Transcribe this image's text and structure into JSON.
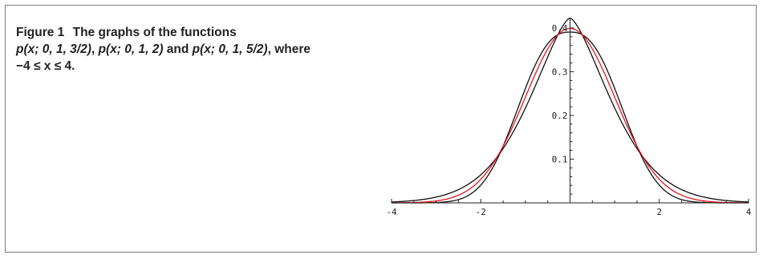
{
  "figure": {
    "label": "Figure 1",
    "text": {
      "part1": "The graphs of the functions",
      "f1": "p(x; 0, 1, 3/2)",
      "sep1": ", ",
      "f2": "p(x; 0, 1, 2)",
      "sep2": " and ",
      "f3": "p(x; 0, 1, 5/2)",
      "part2": ", where",
      "range": "−4 ≤ x ≤ 4."
    }
  },
  "colors": {
    "axis": "#222222",
    "black_series": "#111111",
    "red_series": "#e8141c",
    "frame": "#7f7f7f"
  },
  "chart_data": {
    "type": "line",
    "xlim": [
      -4,
      4
    ],
    "ylim": [
      0,
      0.42
    ],
    "x_ticks": [
      -4,
      -2,
      2,
      4
    ],
    "y_ticks": [
      0.1,
      0.2,
      0.3,
      0.4
    ],
    "x_tick_labels": [
      "-4",
      "-2",
      "2",
      "4"
    ],
    "y_tick_labels": [
      "0.1",
      "0.2",
      "0.3",
      "0.4"
    ],
    "grid": false,
    "series": [
      {
        "p": 1.5,
        "color": "#111111",
        "x": [
          -4,
          -3.5,
          -3,
          -2.5,
          -2,
          -1.5,
          -1,
          -0.5,
          0,
          0.5,
          1,
          1.5,
          2,
          2.5,
          3,
          3.5,
          4
        ],
        "y": [
          0.0048,
          0.0101,
          0.0204,
          0.0396,
          0.0725,
          0.1228,
          0.1876,
          0.2545,
          0.4218,
          0.2545,
          0.1876,
          0.1228,
          0.0725,
          0.0396,
          0.0204,
          0.0101,
          0.0048
        ]
      },
      {
        "p": 2,
        "color": "#e8141c",
        "x": [
          -4,
          -3.5,
          -3,
          -2.5,
          -2,
          -1.5,
          -1,
          -0.5,
          0,
          0.5,
          1,
          1.5,
          2,
          2.5,
          3,
          3.5,
          4
        ],
        "y": [
          0.0001,
          0.0009,
          0.0044,
          0.0175,
          0.054,
          0.1295,
          0.242,
          0.3521,
          0.3989,
          0.3521,
          0.242,
          0.1295,
          0.054,
          0.0175,
          0.0044,
          0.0009,
          0.0001
        ]
      },
      {
        "p": 2.5,
        "color": "#111111",
        "x": [
          -4,
          -3.5,
          -3,
          -2.5,
          -2,
          -1.5,
          -1,
          -0.5,
          0,
          0.5,
          1,
          1.5,
          2,
          2.5,
          3,
          3.5,
          4
        ],
        "y": [
          2e-05,
          0.0003,
          0.0022,
          0.0118,
          0.0443,
          0.123,
          0.2517,
          0.3619,
          0.3872,
          0.3619,
          0.2517,
          0.123,
          0.0443,
          0.0118,
          0.0022,
          0.0003,
          2e-05
        ]
      }
    ]
  }
}
